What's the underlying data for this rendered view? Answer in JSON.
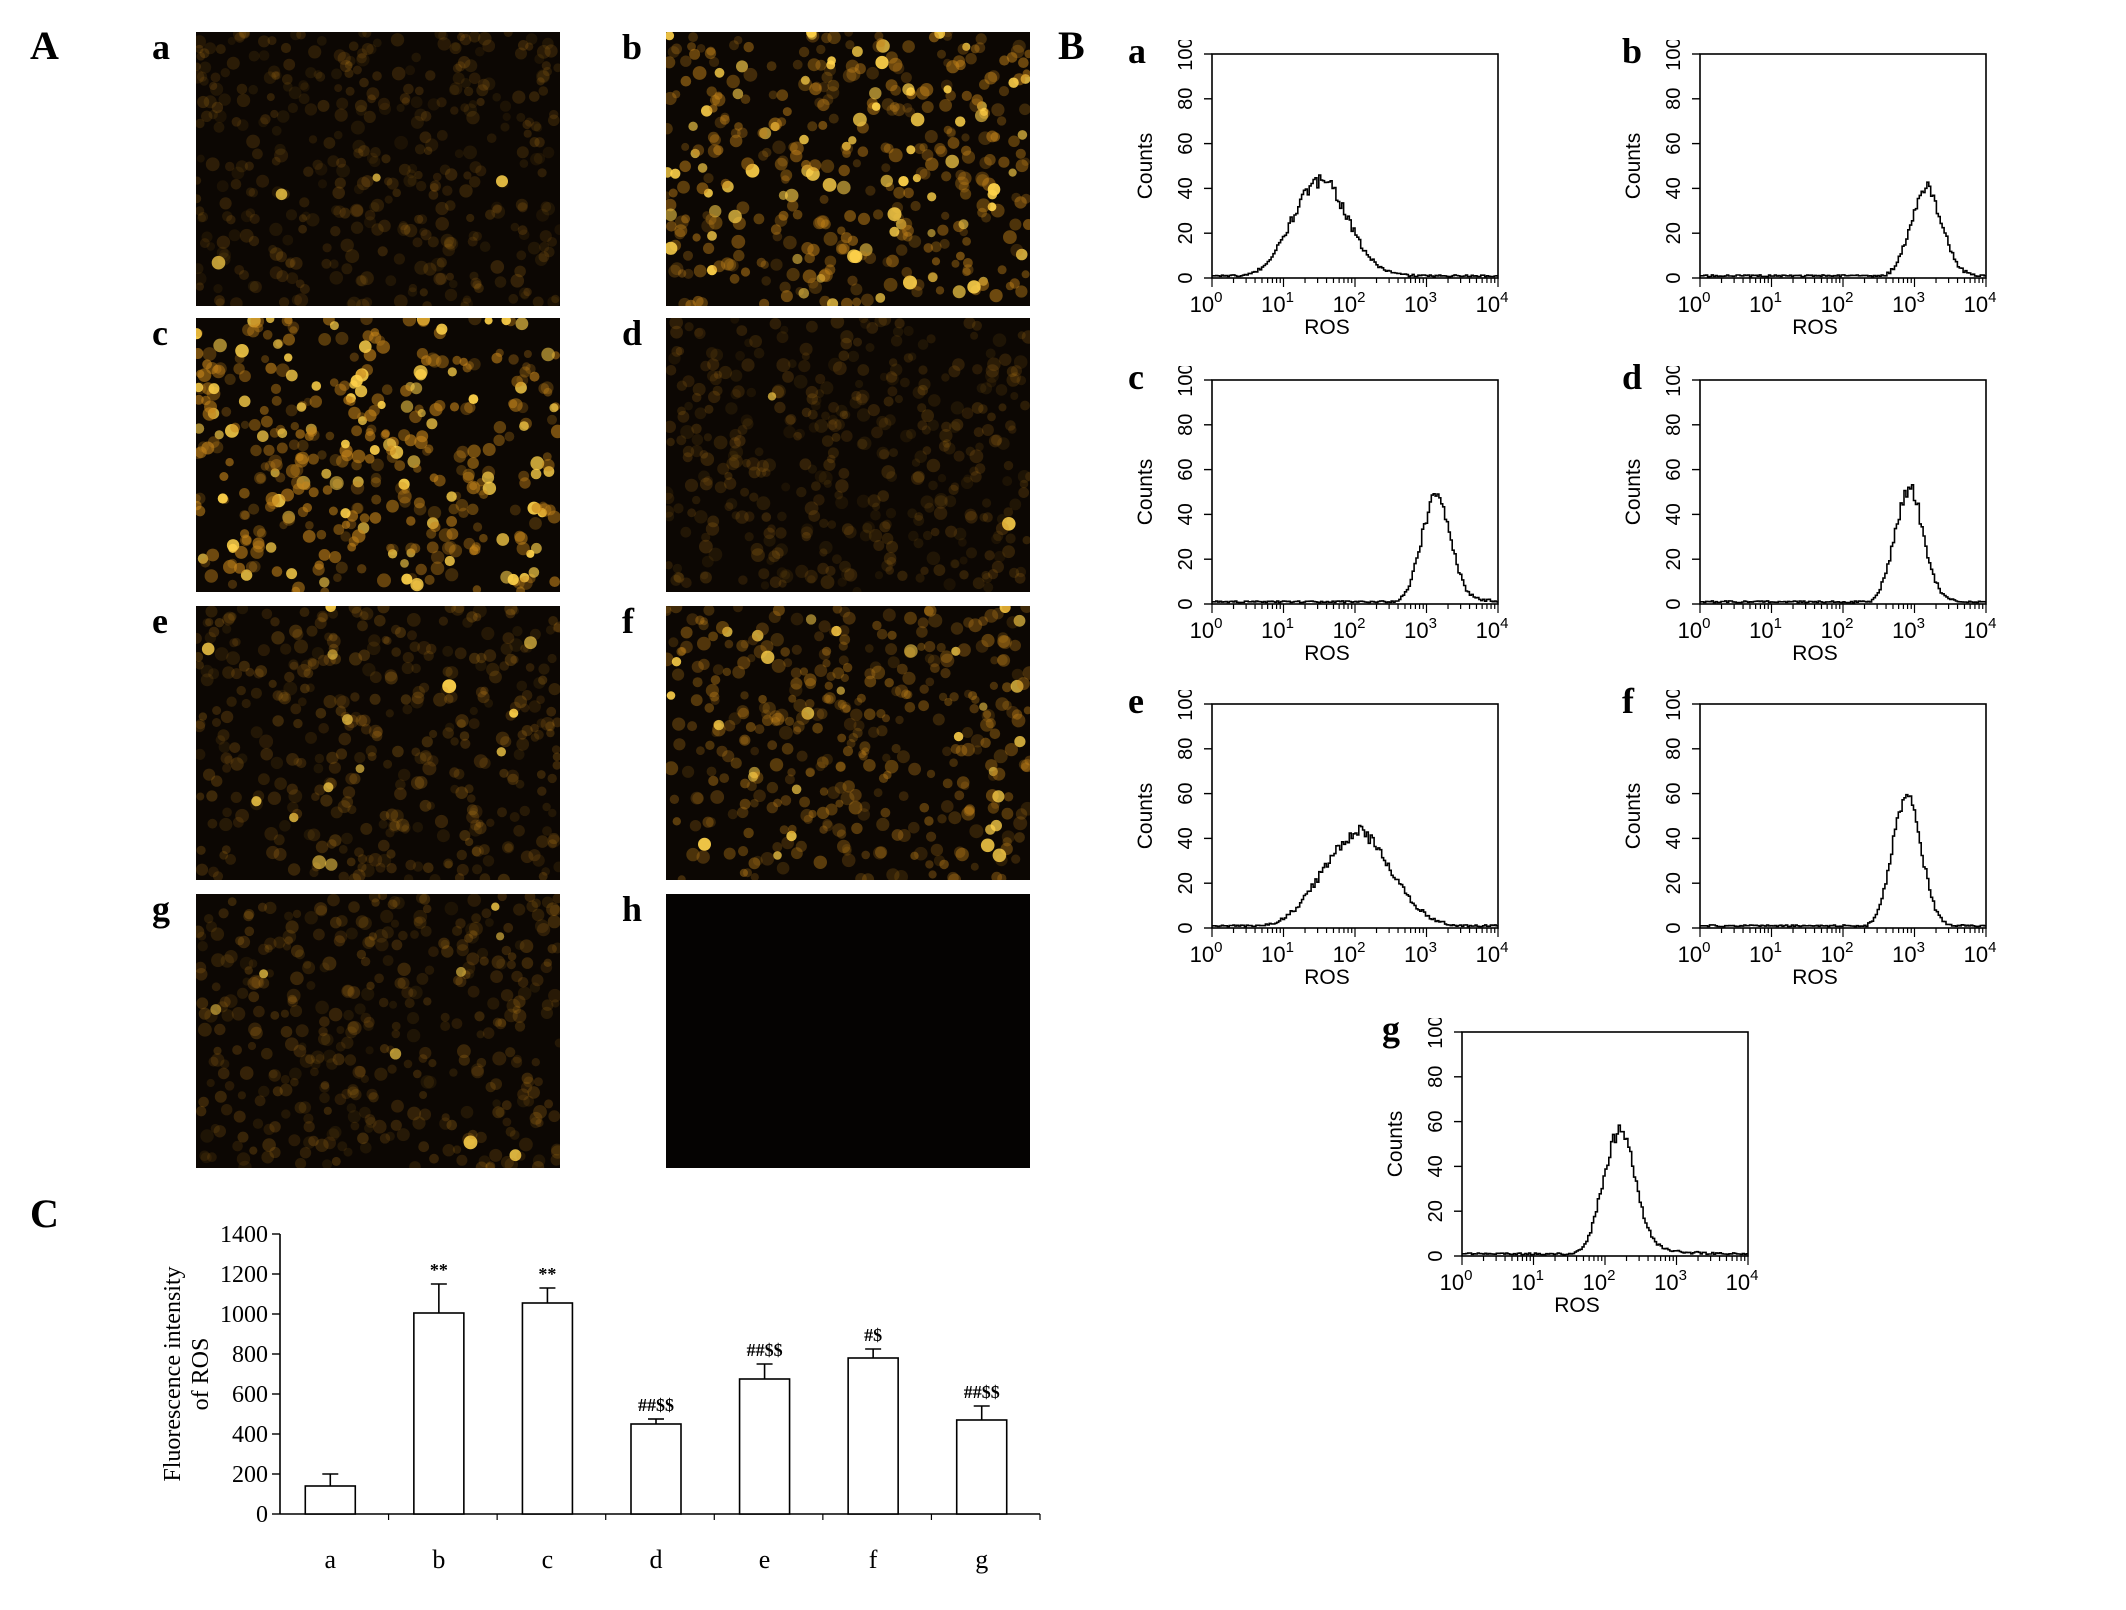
{
  "figure": {
    "panel_labels": {
      "A": "A",
      "B": "B",
      "C": "C"
    },
    "micro_panels": [
      {
        "id": "a",
        "label": "a",
        "brightness": 0.22,
        "bright_cells": 0.02
      },
      {
        "id": "b",
        "label": "b",
        "brightness": 0.55,
        "bright_cells": 0.18
      },
      {
        "id": "c",
        "label": "c",
        "brightness": 0.65,
        "bright_cells": 0.22
      },
      {
        "id": "d",
        "label": "d",
        "brightness": 0.22,
        "bright_cells": 0.01
      },
      {
        "id": "e",
        "label": "e",
        "brightness": 0.28,
        "bright_cells": 0.03
      },
      {
        "id": "f",
        "label": "f",
        "brightness": 0.45,
        "bright_cells": 0.1
      },
      {
        "id": "g",
        "label": "g",
        "brightness": 0.26,
        "bright_cells": 0.02
      },
      {
        "id": "h",
        "label": "h",
        "brightness": 0.0,
        "bright_cells": 0.0
      }
    ],
    "cell_color": "#c8861a",
    "bright_color": "#ffd24a"
  },
  "chart_data": [
    {
      "type": "line",
      "id": "B-a",
      "panel_label": "a",
      "xlabel": "ROS",
      "ylabel": "Counts",
      "x_scale": "log",
      "xlim": [
        1,
        10000
      ],
      "ylim": [
        0,
        100
      ],
      "yticks": [
        "0",
        "20",
        "40",
        "60",
        "80",
        "100"
      ],
      "xtick_base": [
        "10",
        "10",
        "10",
        "10",
        "10"
      ],
      "xtick_exp": [
        "0",
        "1",
        "2",
        "3",
        "4"
      ],
      "peak": {
        "x": 30,
        "y": 42,
        "log_width": 0.38,
        "tail": 0.12
      }
    },
    {
      "type": "line",
      "id": "B-b",
      "panel_label": "b",
      "xlabel": "ROS",
      "ylabel": "Counts",
      "x_scale": "log",
      "xlim": [
        1,
        10000
      ],
      "ylim": [
        0,
        100
      ],
      "yticks": [
        "0",
        "20",
        "40",
        "60",
        "80",
        "100"
      ],
      "xtick_base": [
        "10",
        "10",
        "10",
        "10",
        "10"
      ],
      "xtick_exp": [
        "0",
        "1",
        "2",
        "3",
        "4"
      ],
      "peak": {
        "x": 1400,
        "y": 38,
        "log_width": 0.22,
        "tail": 0.06
      }
    },
    {
      "type": "line",
      "id": "B-c",
      "panel_label": "c",
      "xlabel": "ROS",
      "ylabel": "Counts",
      "x_scale": "log",
      "xlim": [
        1,
        10000
      ],
      "ylim": [
        0,
        100
      ],
      "yticks": [
        "0",
        "20",
        "40",
        "60",
        "80",
        "100"
      ],
      "xtick_base": [
        "10",
        "10",
        "10",
        "10",
        "10"
      ],
      "xtick_exp": [
        "0",
        "1",
        "2",
        "3",
        "4"
      ],
      "peak": {
        "x": 1300,
        "y": 47,
        "log_width": 0.2,
        "tail": 0.08
      }
    },
    {
      "type": "line",
      "id": "B-d",
      "panel_label": "d",
      "xlabel": "ROS",
      "ylabel": "Counts",
      "x_scale": "log",
      "xlim": [
        1,
        10000
      ],
      "ylim": [
        0,
        100
      ],
      "yticks": [
        "0",
        "20",
        "40",
        "60",
        "80",
        "100"
      ],
      "xtick_base": [
        "10",
        "10",
        "10",
        "10",
        "10"
      ],
      "xtick_exp": [
        "0",
        "1",
        "2",
        "3",
        "4"
      ],
      "peak": {
        "x": 800,
        "y": 50,
        "log_width": 0.2,
        "tail": 0.06
      }
    },
    {
      "type": "line",
      "id": "B-e",
      "panel_label": "e",
      "xlabel": "ROS",
      "ylabel": "Counts",
      "x_scale": "log",
      "xlim": [
        1,
        10000
      ],
      "ylim": [
        0,
        100
      ],
      "yticks": [
        "0",
        "20",
        "40",
        "60",
        "80",
        "100"
      ],
      "xtick_base": [
        "10",
        "10",
        "10",
        "10",
        "10"
      ],
      "xtick_exp": [
        "0",
        "1",
        "2",
        "3",
        "4"
      ],
      "peak": {
        "x": 100,
        "y": 41,
        "log_width": 0.48,
        "tail": 0.08
      }
    },
    {
      "type": "line",
      "id": "B-f",
      "panel_label": "f",
      "xlabel": "ROS",
      "ylabel": "Counts",
      "x_scale": "log",
      "xlim": [
        1,
        10000
      ],
      "ylim": [
        0,
        100
      ],
      "yticks": [
        "0",
        "20",
        "40",
        "60",
        "80",
        "100"
      ],
      "xtick_base": [
        "10",
        "10",
        "10",
        "10",
        "10"
      ],
      "xtick_exp": [
        "0",
        "1",
        "2",
        "3",
        "4"
      ],
      "peak": {
        "x": 750,
        "y": 58,
        "log_width": 0.2,
        "tail": 0.04
      }
    },
    {
      "type": "line",
      "id": "B-g",
      "panel_label": "g",
      "xlabel": "ROS",
      "ylabel": "Counts",
      "x_scale": "log",
      "xlim": [
        1,
        10000
      ],
      "ylim": [
        0,
        100
      ],
      "yticks": [
        "0",
        "20",
        "40",
        "60",
        "80",
        "100"
      ],
      "xtick_base": [
        "10",
        "10",
        "10",
        "10",
        "10"
      ],
      "xtick_exp": [
        "0",
        "1",
        "2",
        "3",
        "4"
      ],
      "peak": {
        "x": 150,
        "y": 54,
        "log_width": 0.22,
        "tail": 0.1
      }
    },
    {
      "type": "bar",
      "id": "C",
      "ylabel_lines": [
        "Fluorescence intensity",
        "of ROS"
      ],
      "categories": [
        "a",
        "b",
        "c",
        "d",
        "e",
        "f",
        "g"
      ],
      "values": [
        140,
        1005,
        1055,
        450,
        675,
        780,
        470
      ],
      "errors": [
        60,
        145,
        75,
        25,
        75,
        45,
        70
      ],
      "annotations": [
        "",
        "**",
        "**",
        "##$$",
        "##$$",
        "#$",
        "##$$"
      ],
      "ylim": [
        0,
        1400
      ],
      "yticks": [
        "0",
        "200",
        "400",
        "600",
        "800",
        "1000",
        "1200",
        "1400"
      ]
    }
  ]
}
